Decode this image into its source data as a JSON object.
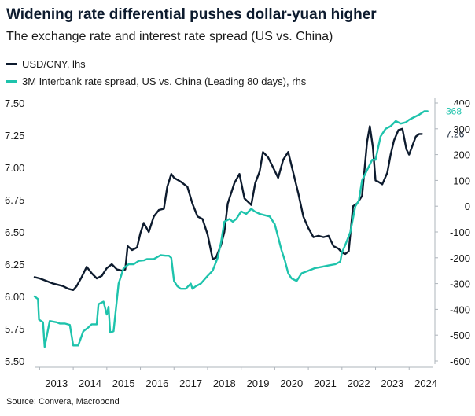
{
  "chart_data": {
    "type": "line",
    "title": "Widening rate differential pushes dollar-yuan higher",
    "subtitle": "The exchange rate and interest rate spread (US vs. China)",
    "source": "Source: Convera, Macrobond",
    "x_ticks": [
      "2013",
      "2014",
      "2015",
      "2016",
      "2017",
      "2018",
      "2019",
      "2020",
      "2021",
      "2022",
      "2023",
      "2024"
    ],
    "xlim": [
      2012.85,
      2024.65
    ],
    "left_axis": {
      "ylim": [
        5.5,
        7.5
      ],
      "ticks": [
        "5.50",
        "5.75",
        "6.00",
        "6.25",
        "6.50",
        "6.75",
        "7.00",
        "7.25",
        "7.50"
      ]
    },
    "right_axis": {
      "ylim": [
        -600,
        400
      ],
      "ticks": [
        "-600",
        "-500",
        "-400",
        "-300",
        "-200",
        "-100",
        "0",
        "100",
        "200",
        "300",
        "400"
      ]
    },
    "grid": false,
    "legend_position": "top-left",
    "series": [
      {
        "name": "USD/CNY, lhs",
        "axis": "left",
        "color": "#0d1b2e",
        "end_label": "7.26",
        "x": [
          2012.85,
          2013.0,
          2013.2,
          2013.4,
          2013.55,
          2013.7,
          2013.85,
          2014.0,
          2014.1,
          2014.25,
          2014.4,
          2014.55,
          2014.7,
          2014.85,
          2015.0,
          2015.15,
          2015.3,
          2015.45,
          2015.55,
          2015.62,
          2015.75,
          2015.9,
          2016.0,
          2016.1,
          2016.25,
          2016.4,
          2016.55,
          2016.7,
          2016.8,
          2016.92,
          2017.0,
          2017.2,
          2017.4,
          2017.55,
          2017.7,
          2017.85,
          2018.0,
          2018.15,
          2018.25,
          2018.4,
          2018.5,
          2018.6,
          2018.8,
          2018.95,
          2019.1,
          2019.3,
          2019.42,
          2019.55,
          2019.65,
          2019.8,
          2019.95,
          2020.1,
          2020.25,
          2020.4,
          2020.55,
          2020.7,
          2020.85,
          2021.0,
          2021.15,
          2021.3,
          2021.45,
          2021.6,
          2021.75,
          2021.9,
          2022.0,
          2022.1,
          2022.2,
          2022.33,
          2022.45,
          2022.6,
          2022.75,
          2022.83,
          2022.92,
          2023.0,
          2023.08,
          2023.2,
          2023.35,
          2023.45,
          2023.55,
          2023.68,
          2023.8,
          2023.92,
          2024.0,
          2024.1,
          2024.2,
          2024.3,
          2024.38
        ],
        "y": [
          6.15,
          6.14,
          6.12,
          6.1,
          6.09,
          6.08,
          6.06,
          6.05,
          6.08,
          6.15,
          6.23,
          6.18,
          6.14,
          6.16,
          6.22,
          6.25,
          6.21,
          6.2,
          6.21,
          6.39,
          6.36,
          6.38,
          6.49,
          6.57,
          6.5,
          6.62,
          6.67,
          6.68,
          6.85,
          6.95,
          6.92,
          6.89,
          6.85,
          6.72,
          6.62,
          6.6,
          6.48,
          6.29,
          6.3,
          6.4,
          6.5,
          6.72,
          6.88,
          6.95,
          6.76,
          6.71,
          6.88,
          6.97,
          7.12,
          7.08,
          7.0,
          6.92,
          7.06,
          7.12,
          6.96,
          6.8,
          6.62,
          6.53,
          6.46,
          6.47,
          6.46,
          6.47,
          6.39,
          6.37,
          6.34,
          6.33,
          6.35,
          6.7,
          6.72,
          6.78,
          7.2,
          7.32,
          7.16,
          6.9,
          6.89,
          6.87,
          6.96,
          7.1,
          7.21,
          7.29,
          7.3,
          7.14,
          7.1,
          7.17,
          7.24,
          7.26,
          7.26
        ]
      },
      {
        "name": "3M Interbank rate spread, US vs. China  (Leading 80 days), rhs",
        "axis": "right",
        "color": "#1ec3ac",
        "end_label": "368",
        "x": [
          2012.85,
          2012.95,
          2012.98,
          2013.1,
          2013.15,
          2013.3,
          2013.5,
          2013.6,
          2013.75,
          2013.9,
          2014.0,
          2014.15,
          2014.3,
          2014.45,
          2014.55,
          2014.7,
          2014.75,
          2014.9,
          2015.0,
          2015.05,
          2015.1,
          2015.2,
          2015.35,
          2015.5,
          2015.65,
          2015.8,
          2015.95,
          2016.1,
          2016.2,
          2016.4,
          2016.6,
          2016.75,
          2016.85,
          2016.92,
          2017.0,
          2017.1,
          2017.2,
          2017.35,
          2017.5,
          2017.55,
          2017.65,
          2017.8,
          2018.0,
          2018.15,
          2018.3,
          2018.4,
          2018.5,
          2018.65,
          2018.75,
          2018.85,
          2019.0,
          2019.15,
          2019.3,
          2019.4,
          2019.55,
          2019.7,
          2019.85,
          2020.0,
          2020.1,
          2020.2,
          2020.3,
          2020.4,
          2020.5,
          2020.65,
          2020.8,
          2021.0,
          2021.2,
          2021.4,
          2021.6,
          2021.8,
          2021.95,
          2022.0,
          2022.1,
          2022.25,
          2022.4,
          2022.5,
          2022.6,
          2022.75,
          2022.9,
          2023.0,
          2023.15,
          2023.3,
          2023.45,
          2023.6,
          2023.75,
          2023.9,
          2024.0,
          2024.15,
          2024.3,
          2024.45,
          2024.55
        ],
        "y": [
          -350,
          -360,
          -440,
          -450,
          -545,
          -445,
          -450,
          -455,
          -455,
          -460,
          -540,
          -540,
          -485,
          -470,
          -458,
          -458,
          -380,
          -370,
          -420,
          -390,
          -490,
          -485,
          -300,
          -240,
          -225,
          -225,
          -212,
          -210,
          -205,
          -205,
          -190,
          -192,
          -192,
          -200,
          -290,
          -310,
          -320,
          -320,
          -300,
          -320,
          -310,
          -300,
          -270,
          -250,
          -200,
          -140,
          -60,
          -50,
          -60,
          -50,
          -20,
          -30,
          -10,
          -20,
          -30,
          -35,
          -40,
          -70,
          -120,
          -170,
          -210,
          -260,
          -280,
          -290,
          -260,
          -250,
          -240,
          -235,
          -230,
          -225,
          -215,
          -180,
          -150,
          -100,
          0,
          20,
          100,
          140,
          180,
          180,
          270,
          300,
          310,
          330,
          320,
          325,
          335,
          345,
          355,
          368,
          368
        ]
      }
    ]
  }
}
